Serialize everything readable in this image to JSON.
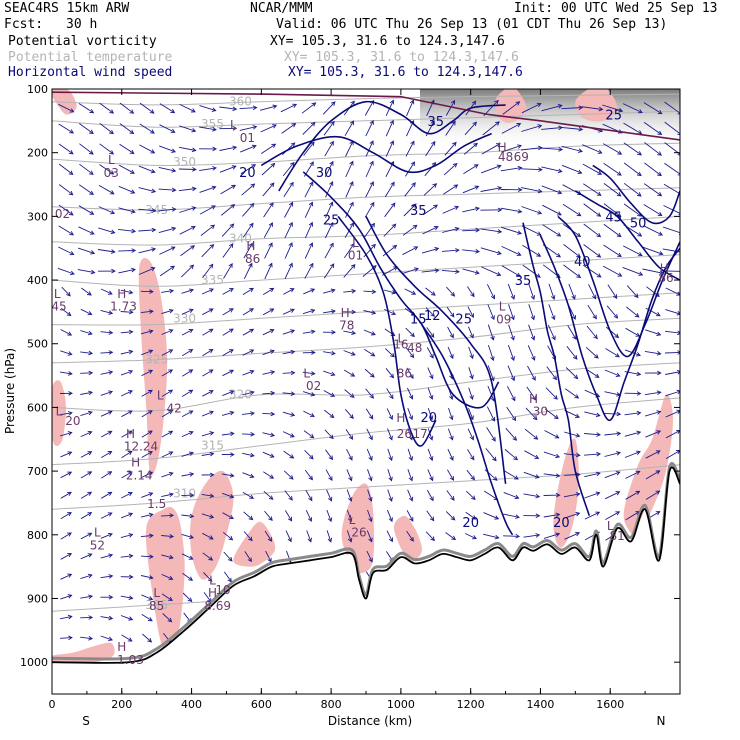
{
  "header": {
    "model": "SEAC4RS 15km ARW",
    "center": "NCAR/MMM",
    "init": "Init: 00 UTC Wed 25 Sep 13",
    "fcst_label": "Fcst:",
    "fcst_value": "30 h",
    "valid": "Valid: 06 UTC Thu 26 Sep 13 (01 CDT Thu 26 Sep 13)",
    "fields": [
      {
        "name": "Potential vorticity",
        "xy": "XY= 105.3, 31.6 to 124.3,147.6",
        "color": "#000000"
      },
      {
        "name": "Potential temperature",
        "xy": "XY= 105.3, 31.6 to 124.3,147.6",
        "color": "#b4b4b4"
      },
      {
        "name": "Horizontal wind speed",
        "xy": "XY= 105.3, 31.6 to 124.3,147.6",
        "color": "#0a0a78"
      }
    ]
  },
  "chart_data": {
    "type": "cross-section",
    "xlabel": "Distance (km)",
    "ylabel": "Pressure (hPa)",
    "xlim": [
      0,
      1800
    ],
    "ylim": [
      1050,
      100
    ],
    "x_ticks": [
      "0",
      "200",
      "400",
      "600",
      "800",
      "1000",
      "1200",
      "1400",
      "1600"
    ],
    "x_tick_values": [
      0,
      200,
      400,
      600,
      800,
      1000,
      1200,
      1400,
      1600
    ],
    "y_ticks": [
      "100",
      "200",
      "300",
      "400",
      "500",
      "600",
      "700",
      "800",
      "900",
      "1000"
    ],
    "y_tick_values": [
      100,
      200,
      300,
      400,
      500,
      600,
      700,
      800,
      900,
      1000
    ],
    "left_end": "S",
    "right_end": "N",
    "colors": {
      "theta": "#b4b4b4",
      "wind": "#0a0a78",
      "pv_fill": "#f4b8b8",
      "pv_label": "#6a3a6a",
      "terrain": "#000000",
      "vectors": "#1c1c8c"
    },
    "terrain": {
      "x": [
        0,
        220,
        300,
        380,
        450,
        520,
        580,
        630,
        680,
        740,
        800,
        860,
        880,
        900,
        920,
        960,
        1000,
        1040,
        1080,
        1120,
        1160,
        1200,
        1240,
        1280,
        1320,
        1350,
        1380,
        1420,
        1460,
        1500,
        1540,
        1560,
        1580,
        1620,
        1660,
        1700,
        1740,
        1770,
        1800
      ],
      "p": [
        1000,
        1000,
        985,
        950,
        915,
        880,
        865,
        850,
        845,
        840,
        835,
        830,
        870,
        900,
        860,
        855,
        835,
        845,
        840,
        830,
        835,
        840,
        830,
        820,
        840,
        820,
        825,
        815,
        830,
        820,
        840,
        800,
        850,
        790,
        810,
        760,
        840,
        700,
        720
      ]
    },
    "theta_contours": [
      {
        "label": "305",
        "x": [
          0,
          300,
          600,
          900,
          1200,
          1500,
          1800
        ],
        "p": [
          920,
          910,
          900,
          890,
          880,
          870,
          860
        ]
      },
      {
        "label": "310",
        "x": [
          0,
          300,
          600,
          900,
          1200,
          1500,
          1800
        ],
        "p": [
          760,
          750,
          735,
          725,
          715,
          705,
          690
        ]
      },
      {
        "label": "315",
        "x": [
          0,
          300,
          600,
          900,
          1200,
          1500,
          1800
        ],
        "p": [
          690,
          680,
          660,
          640,
          625,
          600,
          585
        ]
      },
      {
        "label": "320",
        "x": [
          0,
          300,
          600,
          900,
          1200,
          1500,
          1800
        ],
        "p": [
          600,
          605,
          580,
          580,
          560,
          540,
          530
        ]
      },
      {
        "label": "325",
        "x": [
          0,
          300,
          600,
          900,
          1200,
          1500,
          1800
        ],
        "p": [
          530,
          525,
          515,
          505,
          490,
          470,
          460
        ]
      },
      {
        "label": "330",
        "x": [
          0,
          300,
          600,
          900,
          1200,
          1500,
          1800
        ],
        "p": [
          470,
          470,
          460,
          450,
          440,
          430,
          420
        ]
      },
      {
        "label": "335",
        "x": [
          0,
          300,
          600,
          900,
          1200,
          1500,
          1800
        ],
        "p": [
          400,
          410,
          400,
          390,
          380,
          370,
          360
        ]
      },
      {
        "label": "340",
        "x": [
          0,
          300,
          600,
          900,
          1200,
          1500,
          1800
        ],
        "p": [
          340,
          345,
          335,
          330,
          320,
          310,
          300
        ]
      },
      {
        "label": "345",
        "x": [
          0,
          300,
          600,
          900,
          1200,
          1500,
          1800
        ],
        "p": [
          285,
          290,
          280,
          270,
          265,
          260,
          255
        ]
      },
      {
        "label": "350",
        "x": [
          0,
          300,
          600,
          900,
          1200,
          1500,
          1800
        ],
        "p": [
          210,
          220,
          215,
          205,
          200,
          190,
          185
        ]
      },
      {
        "label": "355",
        "x": [
          0,
          300,
          600,
          900,
          1200,
          1500,
          1800
        ],
        "p": [
          150,
          160,
          155,
          150,
          145,
          140,
          135
        ]
      },
      {
        "label": "360",
        "x": [
          0,
          300,
          600,
          900,
          1200,
          1500,
          1800
        ],
        "p": [
          120,
          125,
          120,
          115,
          112,
          110,
          108
        ]
      }
    ],
    "wind_contours": [
      {
        "x": [
          650,
          720,
          800,
          900,
          1000,
          1080,
          1150,
          1200,
          1300
        ],
        "p": [
          260,
          200,
          150,
          120,
          140,
          170,
          150,
          130,
          125
        ]
      },
      {
        "x": [
          600,
          700,
          820,
          920,
          1020,
          1100,
          1180,
          1260
        ],
        "p": [
          220,
          190,
          175,
          200,
          230,
          220,
          190,
          170
        ]
      },
      {
        "x": [
          720,
          800,
          880,
          940,
          1000,
          1060,
          1100,
          1150,
          1230,
          1280
        ],
        "p": [
          230,
          270,
          320,
          380,
          430,
          470,
          520,
          580,
          600,
          560
        ]
      },
      {
        "x": [
          900,
          960,
          1040,
          1120,
          1200,
          1260,
          1300
        ],
        "p": [
          300,
          360,
          410,
          450,
          500,
          560,
          720
        ]
      },
      {
        "x": [
          820,
          900,
          950,
          980,
          1000,
          1030,
          1060,
          1100
        ],
        "p": [
          300,
          360,
          420,
          500,
          580,
          640,
          660,
          620
        ]
      },
      {
        "x": [
          1060,
          1120,
          1180,
          1220,
          1260,
          1300,
          1320
        ],
        "p": [
          470,
          520,
          590,
          650,
          720,
          780,
          800
        ]
      },
      {
        "x": [
          1350,
          1380,
          1400,
          1420,
          1440,
          1460,
          1480,
          1500,
          1540
        ],
        "p": [
          310,
          380,
          420,
          480,
          520,
          580,
          620,
          700,
          770
        ]
      },
      {
        "x": [
          1400,
          1440,
          1480,
          1520,
          1560,
          1600,
          1640,
          1680,
          1720,
          1760,
          1800
        ],
        "p": [
          330,
          380,
          440,
          520,
          580,
          620,
          560,
          500,
          430,
          380,
          350
        ]
      },
      {
        "x": [
          1450,
          1500,
          1550,
          1600,
          1650,
          1700,
          1750,
          1800
        ],
        "p": [
          300,
          330,
          400,
          480,
          520,
          470,
          400,
          340
        ]
      },
      {
        "x": [
          1500,
          1560,
          1620,
          1680,
          1740,
          1800
        ],
        "p": [
          260,
          280,
          300,
          340,
          380,
          400
        ]
      },
      {
        "x": [
          1550,
          1600,
          1660,
          1720,
          1770,
          1800
        ],
        "p": [
          220,
          240,
          280,
          310,
          300,
          260
        ]
      }
    ],
    "wind_labels": [
      {
        "text": "35",
        "x": 1100,
        "p": 150
      },
      {
        "text": "25",
        "x": 1610,
        "p": 140
      },
      {
        "text": "20",
        "x": 560,
        "p": 230
      },
      {
        "text": "30",
        "x": 780,
        "p": 230
      },
      {
        "text": "25",
        "x": 800,
        "p": 305
      },
      {
        "text": "35",
        "x": 1050,
        "p": 290
      },
      {
        "text": "15",
        "x": 1050,
        "p": 460
      },
      {
        "text": "25",
        "x": 1180,
        "p": 460
      },
      {
        "text": "12",
        "x": 1090,
        "p": 455
      },
      {
        "text": "20",
        "x": 1080,
        "p": 615
      },
      {
        "text": "20",
        "x": 1200,
        "p": 780
      },
      {
        "text": "35",
        "x": 1350,
        "p": 400
      },
      {
        "text": "40",
        "x": 1520,
        "p": 370
      },
      {
        "text": "45",
        "x": 1610,
        "p": 300
      },
      {
        "text": "50",
        "x": 1680,
        "p": 310
      },
      {
        "text": "20",
        "x": 1460,
        "p": 780
      }
    ],
    "pv_regions": [
      {
        "x": [
          250,
          280,
          310,
          330,
          320,
          300,
          280,
          270,
          255
        ],
        "p": [
          380,
          370,
          420,
          520,
          620,
          690,
          700,
          600,
          480
        ]
      },
      {
        "x": [
          0,
          25,
          40,
          30,
          10,
          0
        ],
        "p": [
          570,
          560,
          600,
          650,
          660,
          640
        ]
      },
      {
        "x": [
          270,
          320,
          350,
          370,
          380,
          360,
          320,
          290
        ],
        "p": [
          790,
          760,
          760,
          790,
          860,
          960,
          980,
          900
        ]
      },
      {
        "x": [
          400,
          440,
          490,
          520,
          500,
          470,
          430,
          400
        ],
        "p": [
          770,
          720,
          700,
          740,
          800,
          850,
          870,
          830
        ]
      },
      {
        "x": [
          0,
          60,
          120,
          170,
          175,
          120,
          40,
          0
        ],
        "p": [
          990,
          985,
          975,
          970,
          990,
          1000,
          1000,
          1000
        ]
      },
      {
        "x": [
          520,
          560,
          600,
          640,
          600,
          560
        ],
        "p": [
          840,
          800,
          780,
          820,
          845,
          850
        ]
      },
      {
        "x": [
          830,
          860,
          900,
          920,
          920,
          890,
          860
        ],
        "p": [
          800,
          740,
          720,
          760,
          840,
          860,
          850
        ]
      },
      {
        "x": [
          980,
          1010,
          1040,
          1060,
          1050,
          1020
        ],
        "p": [
          790,
          770,
          790,
          820,
          835,
          840
        ]
      },
      {
        "x": [
          1440,
          1470,
          1500,
          1510,
          1490,
          1460,
          1440
        ],
        "p": [
          760,
          680,
          650,
          720,
          790,
          820,
          800
        ]
      },
      {
        "x": [
          1640,
          1680,
          1720,
          1760,
          1780,
          1760,
          1720,
          1680,
          1650
        ],
        "p": [
          760,
          690,
          650,
          580,
          620,
          700,
          760,
          800,
          790
        ]
      },
      {
        "x": [
          1270,
          1300,
          1330,
          1360,
          1330,
          1290
        ],
        "p": [
          120,
          100,
          100,
          130,
          150,
          150
        ]
      },
      {
        "x": [
          1500,
          1540,
          1590,
          1620,
          1580,
          1520
        ],
        "p": [
          120,
          100,
          100,
          130,
          150,
          145
        ]
      },
      {
        "x": [
          0,
          40,
          60,
          70,
          40,
          10,
          0
        ],
        "p": [
          100,
          100,
          110,
          130,
          140,
          120,
          110
        ]
      }
    ],
    "pv_labels": [
      {
        "text": "L",
        "x": 520,
        "p": 155
      },
      {
        "text": "01",
        "x": 560,
        "p": 175
      },
      {
        "text": "L",
        "x": 170,
        "p": 210
      },
      {
        "text": "03",
        "x": 170,
        "p": 230
      },
      {
        "text": "02",
        "x": 30,
        "p": 295
      },
      {
        "text": "H",
        "x": 570,
        "p": 345
      },
      {
        "text": "86",
        "x": 575,
        "p": 365
      },
      {
        "text": "L",
        "x": 870,
        "p": 340
      },
      {
        "text": "01",
        "x": 870,
        "p": 360
      },
      {
        "text": "H",
        "x": 200,
        "p": 420
      },
      {
        "text": "1.73",
        "x": 205,
        "p": 440
      },
      {
        "text": "L",
        "x": 15,
        "p": 420
      },
      {
        "text": "45",
        "x": 20,
        "p": 440
      },
      {
        "text": "H",
        "x": 840,
        "p": 450
      },
      {
        "text": "78",
        "x": 845,
        "p": 470
      },
      {
        "text": "L",
        "x": 1000,
        "p": 490
      },
      {
        "text": "16",
        "x": 1000,
        "p": 500
      },
      {
        "text": "48",
        "x": 1040,
        "p": 505
      },
      {
        "text": "L",
        "x": 1290,
        "p": 440
      },
      {
        "text": "09",
        "x": 1295,
        "p": 460
      },
      {
        "text": "L",
        "x": 730,
        "p": 545
      },
      {
        "text": "02",
        "x": 750,
        "p": 565
      },
      {
        "text": "86",
        "x": 1010,
        "p": 545
      },
      {
        "text": "L",
        "x": 310,
        "p": 580
      },
      {
        "text": "42",
        "x": 350,
        "p": 600
      },
      {
        "text": "L",
        "x": 20,
        "p": 605
      },
      {
        "text": "20",
        "x": 60,
        "p": 620
      },
      {
        "text": "H",
        "x": 1380,
        "p": 585
      },
      {
        "text": "30",
        "x": 1400,
        "p": 605
      },
      {
        "text": "H",
        "x": 1000,
        "p": 615
      },
      {
        "text": "26",
        "x": 1010,
        "p": 640
      },
      {
        "text": "17",
        "x": 1055,
        "p": 640
      },
      {
        "text": "H",
        "x": 225,
        "p": 640
      },
      {
        "text": "12.24",
        "x": 255,
        "p": 660
      },
      {
        "text": "H",
        "x": 240,
        "p": 685
      },
      {
        "text": "2.14",
        "x": 250,
        "p": 705
      },
      {
        "text": "1.5",
        "x": 300,
        "p": 750
      },
      {
        "text": "L",
        "x": 860,
        "p": 775
      },
      {
        "text": "26",
        "x": 880,
        "p": 795
      },
      {
        "text": "L",
        "x": 130,
        "p": 795
      },
      {
        "text": "52",
        "x": 130,
        "p": 815
      },
      {
        "text": "L",
        "x": 1600,
        "p": 785
      },
      {
        "text": "81",
        "x": 1620,
        "p": 800
      },
      {
        "text": "L",
        "x": 460,
        "p": 870
      },
      {
        "text": "10",
        "x": 490,
        "p": 885
      },
      {
        "text": "H",
        "x": 460,
        "p": 890
      },
      {
        "text": "8.69",
        "x": 475,
        "p": 910
      },
      {
        "text": "L",
        "x": 300,
        "p": 890
      },
      {
        "text": "85",
        "x": 300,
        "p": 910
      },
      {
        "text": "H",
        "x": 1290,
        "p": 190
      },
      {
        "text": "48",
        "x": 1300,
        "p": 205
      },
      {
        "text": "69",
        "x": 1345,
        "p": 205
      },
      {
        "text": "H",
        "x": 1755,
        "p": 380
      },
      {
        "text": "86",
        "x": 1760,
        "p": 395
      },
      {
        "text": "H",
        "x": 200,
        "p": 975
      },
      {
        "text": "1.03",
        "x": 225,
        "p": 995
      }
    ]
  }
}
